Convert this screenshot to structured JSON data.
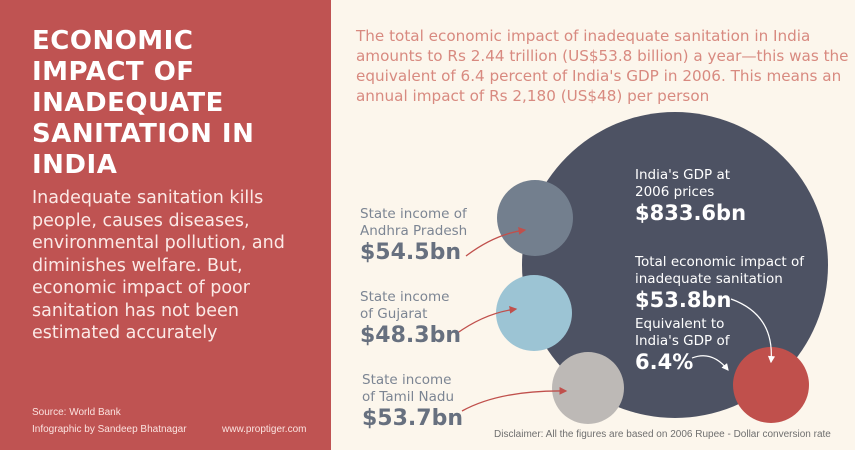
{
  "title": "ECONOMIC IMPACT OF INADEQUATE SANITATION IN INDIA",
  "intro": "Inadequate sanitation kills people, causes diseases, environmental pollution, and diminishes welfare. But, economic impact of poor sanitation has not been estimated accurately",
  "source": "Source: World Bank",
  "credit": "Infographic by Sandeep Bhatnagar",
  "website": "www.proptiger.com",
  "lead": "The total economic impact of inadequate sanitation in India amounts to Rs 2.44 trillion (US$53.8 billion) a year—this was the equivalent of 6.4 percent of India's GDP in 2006. This means an annual impact of Rs 2,180 (US$48) per person",
  "gdp": {
    "label": "India's GDP at 2006 prices",
    "value": "$833.6bn"
  },
  "impact": {
    "label": "Total economic impact of inadequate sanitation",
    "value": "$53.8bn"
  },
  "share": {
    "label": "Equivalent to India's GDP of",
    "value": "6.4%"
  },
  "states": [
    {
      "label": "State income of Andhra Pradesh",
      "value": "$54.5bn"
    },
    {
      "label": "State income of Gujarat",
      "value": "$48.3bn"
    },
    {
      "label": "State income of Tamil Nadu",
      "value": "$53.7bn"
    }
  ],
  "disclaimer": "Disclaimer: All the figures are based on 2006 Rupee - Dollar conversion rate",
  "colors": {
    "panel": "#bf5352",
    "gdp": "#4d5263",
    "andhra": "#737f8e",
    "gujarat": "#9cc4d4",
    "tamil": "#bdb9b6",
    "impact": "#c0504c"
  }
}
